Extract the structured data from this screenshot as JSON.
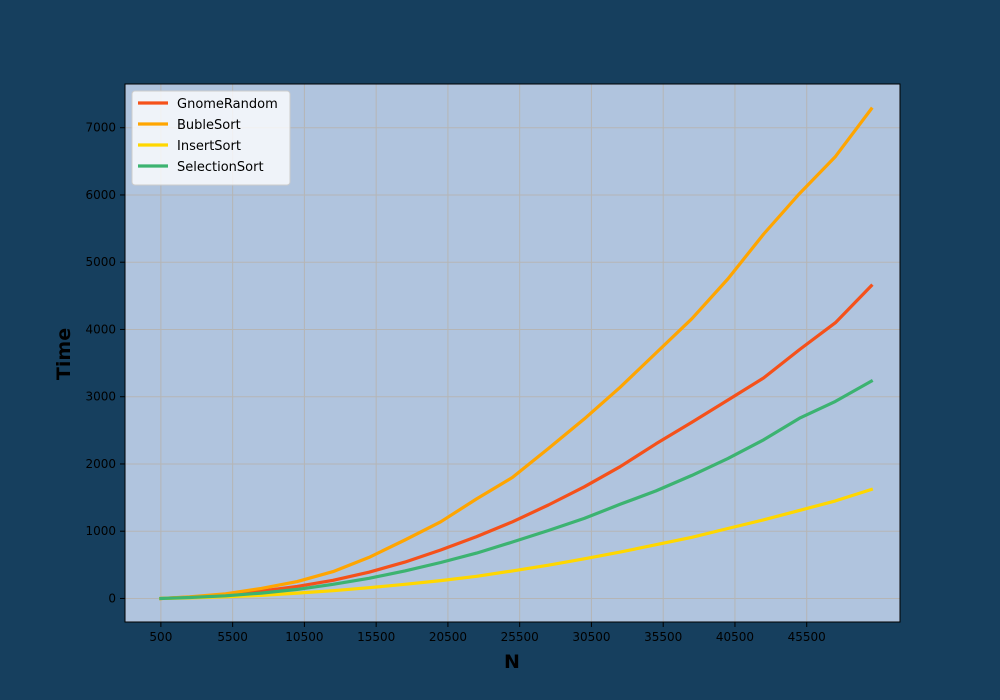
{
  "chart_data": {
    "type": "line",
    "title": "",
    "xlabel": "N",
    "ylabel": "Time",
    "xlim": [
      -2000,
      52000
    ],
    "ylim": [
      -350,
      7650
    ],
    "grid": true,
    "legend_position": "top-left",
    "background_color": "#163f5e",
    "plot_background_color": "#b0c4de",
    "grid_color": "#b5b5b5",
    "x_ticks": [
      500,
      5500,
      10500,
      15500,
      20500,
      25500,
      30500,
      35500,
      40500,
      45500
    ],
    "x_tick_labels": [
      "500",
      "5500",
      "10500",
      "15500",
      "20500",
      "25500",
      "30500",
      "35500",
      "40500",
      "45500"
    ],
    "y_ticks": [
      0,
      1000,
      2000,
      3000,
      4000,
      5000,
      6000,
      7000
    ],
    "y_tick_labels": [
      "0",
      "1000",
      "2000",
      "3000",
      "4000",
      "5000",
      "6000",
      "7000"
    ],
    "x": [
      500,
      2500,
      5000,
      7500,
      10000,
      12500,
      15000,
      17500,
      20000,
      22500,
      25000,
      27500,
      30000,
      32500,
      35000,
      37500,
      40000,
      42500,
      45000,
      47500,
      50000
    ],
    "series": [
      {
        "name": "GnomeRandom",
        "color": "#f5511a",
        "values": [
          0,
          20,
          55,
          110,
          180,
          270,
          390,
          540,
          720,
          920,
          1140,
          1390,
          1660,
          1960,
          2300,
          2620,
          2950,
          3280,
          3700,
          4100,
          4650
        ]
      },
      {
        "name": "BubleSort",
        "color": "#ffa500",
        "values": [
          0,
          25,
          70,
          150,
          250,
          400,
          610,
          870,
          1140,
          1480,
          1800,
          2230,
          2670,
          3140,
          3650,
          4160,
          4750,
          5420,
          6020,
          6570,
          7280
        ]
      },
      {
        "name": "InsertSort",
        "color": "#ffd700",
        "values": [
          0,
          8,
          25,
          45,
          80,
          115,
          160,
          210,
          265,
          330,
          410,
          495,
          590,
          690,
          800,
          910,
          1040,
          1170,
          1310,
          1450,
          1620
        ]
      },
      {
        "name": "SelectionSort",
        "color": "#3cb371",
        "values": [
          0,
          15,
          40,
          80,
          135,
          210,
          300,
          410,
          535,
          675,
          840,
          1010,
          1190,
          1400,
          1600,
          1830,
          2080,
          2360,
          2680,
          2930,
          3230
        ]
      }
    ]
  }
}
